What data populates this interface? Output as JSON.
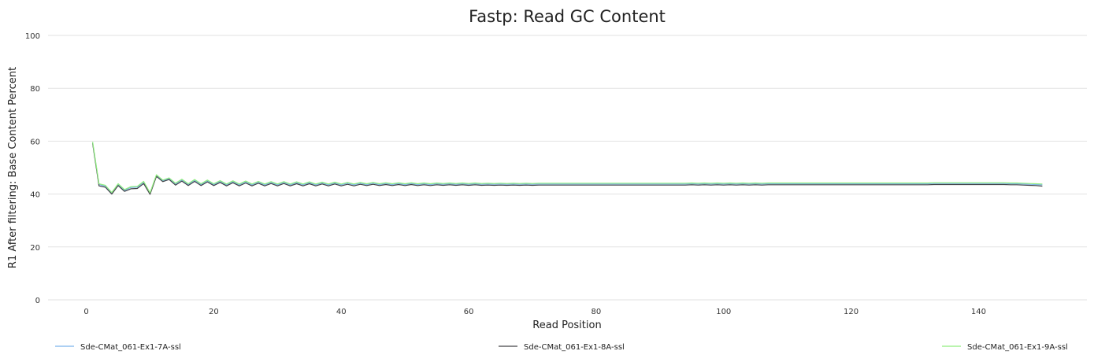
{
  "chart_data": {
    "type": "line",
    "title": "Fastp: Read GC Content",
    "xlabel": "Read Position",
    "ylabel": "R1 After filtering: Base Content Percent",
    "xlim": [
      -6,
      157
    ],
    "ylim": [
      0,
      100
    ],
    "x_ticks": [
      0,
      20,
      40,
      60,
      80,
      100,
      120,
      140
    ],
    "y_ticks": [
      0,
      20,
      40,
      60,
      80,
      100
    ],
    "grid": true,
    "legend_position": "bottom",
    "x": [
      1,
      2,
      3,
      4,
      5,
      6,
      7,
      8,
      9,
      10,
      11,
      12,
      13,
      14,
      15,
      16,
      17,
      18,
      19,
      20,
      21,
      22,
      23,
      24,
      25,
      26,
      27,
      28,
      29,
      30,
      31,
      32,
      33,
      34,
      35,
      36,
      37,
      38,
      39,
      40,
      41,
      42,
      43,
      44,
      45,
      46,
      47,
      48,
      49,
      50,
      51,
      52,
      53,
      54,
      55,
      56,
      57,
      58,
      59,
      60,
      61,
      62,
      63,
      64,
      65,
      66,
      67,
      68,
      69,
      70,
      71,
      72,
      73,
      74,
      75,
      76,
      77,
      78,
      79,
      80,
      81,
      82,
      83,
      84,
      85,
      86,
      87,
      88,
      89,
      90,
      91,
      92,
      93,
      94,
      95,
      96,
      97,
      98,
      99,
      100,
      101,
      102,
      103,
      104,
      105,
      106,
      107,
      108,
      109,
      110,
      111,
      112,
      113,
      114,
      115,
      116,
      117,
      118,
      119,
      120,
      121,
      122,
      123,
      124,
      125,
      126,
      127,
      128,
      129,
      130,
      131,
      132,
      133,
      134,
      135,
      136,
      137,
      138,
      139,
      140,
      141,
      142,
      143,
      144,
      145,
      146,
      147,
      148,
      149,
      150
    ],
    "series": [
      {
        "name": "Sde-CMat_061-Ex1-7A-ssl",
        "color": "#7cb5ec",
        "values": [
          59.5,
          43.6,
          43.0,
          40.3,
          43.6,
          41.4,
          42.5,
          42.6,
          44.5,
          40.2,
          47.0,
          45.0,
          45.8,
          43.8,
          45.3,
          43.6,
          45.2,
          43.6,
          45.0,
          43.6,
          44.8,
          43.5,
          44.7,
          43.5,
          44.6,
          43.5,
          44.5,
          43.5,
          44.4,
          43.5,
          44.4,
          43.5,
          44.3,
          43.5,
          44.3,
          43.5,
          44.2,
          43.5,
          44.2,
          43.5,
          44.1,
          43.5,
          44.1,
          43.6,
          44.1,
          43.6,
          44.0,
          43.6,
          44.0,
          43.6,
          44.0,
          43.6,
          43.9,
          43.6,
          43.9,
          43.7,
          43.9,
          43.7,
          43.9,
          43.7,
          43.9,
          43.7,
          43.8,
          43.7,
          43.8,
          43.7,
          43.8,
          43.7,
          43.8,
          43.7,
          43.8,
          43.8,
          43.8,
          43.8,
          43.8,
          43.8,
          43.8,
          43.8,
          43.8,
          43.8,
          43.8,
          43.8,
          43.8,
          43.8,
          43.8,
          43.8,
          43.8,
          43.8,
          43.8,
          43.8,
          43.8,
          43.8,
          43.8,
          43.8,
          43.9,
          43.8,
          43.9,
          43.8,
          43.9,
          43.8,
          43.9,
          43.8,
          43.9,
          43.8,
          43.9,
          43.8,
          43.9,
          43.9,
          43.9,
          43.9,
          43.9,
          43.9,
          43.9,
          43.9,
          43.9,
          43.9,
          43.9,
          43.9,
          43.9,
          43.9,
          43.9,
          43.9,
          43.9,
          43.9,
          43.9,
          43.9,
          43.9,
          43.9,
          43.9,
          43.9,
          43.9,
          43.9,
          44.0,
          44.0,
          44.0,
          44.0,
          44.0,
          44.0,
          44.0,
          44.0,
          44.0,
          44.0,
          44.0,
          44.0,
          43.9,
          43.9,
          43.8,
          43.7,
          43.6,
          43.5
        ]
      },
      {
        "name": "Sde-CMat_061-Ex1-8A-ssl",
        "color": "#434348",
        "values": [
          59.2,
          43.1,
          42.6,
          40.0,
          43.2,
          41.0,
          42.0,
          42.1,
          44.0,
          39.9,
          46.7,
          44.7,
          45.5,
          43.4,
          44.9,
          43.2,
          44.8,
          43.2,
          44.6,
          43.2,
          44.4,
          43.1,
          44.3,
          43.1,
          44.2,
          43.1,
          44.1,
          43.1,
          44.0,
          43.1,
          44.0,
          43.1,
          43.9,
          43.1,
          43.9,
          43.1,
          43.8,
          43.1,
          43.8,
          43.1,
          43.7,
          43.1,
          43.7,
          43.2,
          43.7,
          43.2,
          43.6,
          43.2,
          43.6,
          43.2,
          43.6,
          43.2,
          43.5,
          43.2,
          43.5,
          43.3,
          43.5,
          43.3,
          43.5,
          43.3,
          43.5,
          43.3,
          43.4,
          43.3,
          43.4,
          43.3,
          43.4,
          43.3,
          43.4,
          43.3,
          43.4,
          43.4,
          43.4,
          43.4,
          43.4,
          43.4,
          43.4,
          43.4,
          43.4,
          43.4,
          43.4,
          43.4,
          43.4,
          43.4,
          43.4,
          43.4,
          43.4,
          43.4,
          43.4,
          43.4,
          43.4,
          43.4,
          43.4,
          43.4,
          43.5,
          43.4,
          43.5,
          43.4,
          43.5,
          43.4,
          43.5,
          43.4,
          43.5,
          43.4,
          43.5,
          43.4,
          43.5,
          43.5,
          43.5,
          43.5,
          43.5,
          43.5,
          43.5,
          43.5,
          43.5,
          43.5,
          43.5,
          43.5,
          43.5,
          43.5,
          43.5,
          43.5,
          43.5,
          43.5,
          43.5,
          43.5,
          43.5,
          43.5,
          43.5,
          43.5,
          43.5,
          43.5,
          43.6,
          43.6,
          43.6,
          43.6,
          43.6,
          43.6,
          43.6,
          43.6,
          43.6,
          43.6,
          43.6,
          43.6,
          43.5,
          43.5,
          43.4,
          43.3,
          43.2,
          43.0
        ]
      },
      {
        "name": "Sde-CMat_061-Ex1-9A-ssl",
        "color": "#90ed7d",
        "values": [
          59.7,
          43.9,
          43.3,
          40.6,
          43.9,
          41.7,
          42.8,
          42.9,
          44.8,
          40.5,
          47.3,
          45.3,
          46.1,
          44.1,
          45.6,
          43.9,
          45.5,
          43.9,
          45.3,
          43.9,
          45.1,
          43.8,
          45.0,
          43.8,
          44.9,
          43.8,
          44.8,
          43.8,
          44.7,
          43.8,
          44.7,
          43.8,
          44.6,
          43.8,
          44.6,
          43.8,
          44.5,
          43.8,
          44.5,
          43.8,
          44.4,
          43.8,
          44.4,
          43.9,
          44.4,
          43.9,
          44.3,
          43.9,
          44.3,
          43.9,
          44.3,
          43.9,
          44.2,
          43.9,
          44.2,
          44.0,
          44.2,
          44.0,
          44.2,
          44.0,
          44.2,
          44.0,
          44.1,
          44.0,
          44.1,
          44.0,
          44.1,
          44.0,
          44.1,
          44.0,
          44.1,
          44.1,
          44.1,
          44.1,
          44.1,
          44.1,
          44.1,
          44.1,
          44.1,
          44.1,
          44.1,
          44.1,
          44.1,
          44.1,
          44.1,
          44.1,
          44.1,
          44.1,
          44.1,
          44.1,
          44.1,
          44.1,
          44.1,
          44.1,
          44.2,
          44.1,
          44.2,
          44.1,
          44.2,
          44.1,
          44.2,
          44.1,
          44.2,
          44.1,
          44.2,
          44.1,
          44.2,
          44.2,
          44.2,
          44.2,
          44.2,
          44.2,
          44.2,
          44.2,
          44.2,
          44.2,
          44.2,
          44.2,
          44.2,
          44.2,
          44.2,
          44.2,
          44.2,
          44.2,
          44.2,
          44.2,
          44.2,
          44.2,
          44.2,
          44.2,
          44.2,
          44.2,
          44.3,
          44.3,
          44.3,
          44.3,
          44.3,
          44.3,
          44.3,
          44.3,
          44.3,
          44.3,
          44.3,
          44.3,
          44.2,
          44.2,
          44.1,
          44.0,
          43.9,
          43.8
        ]
      }
    ]
  }
}
